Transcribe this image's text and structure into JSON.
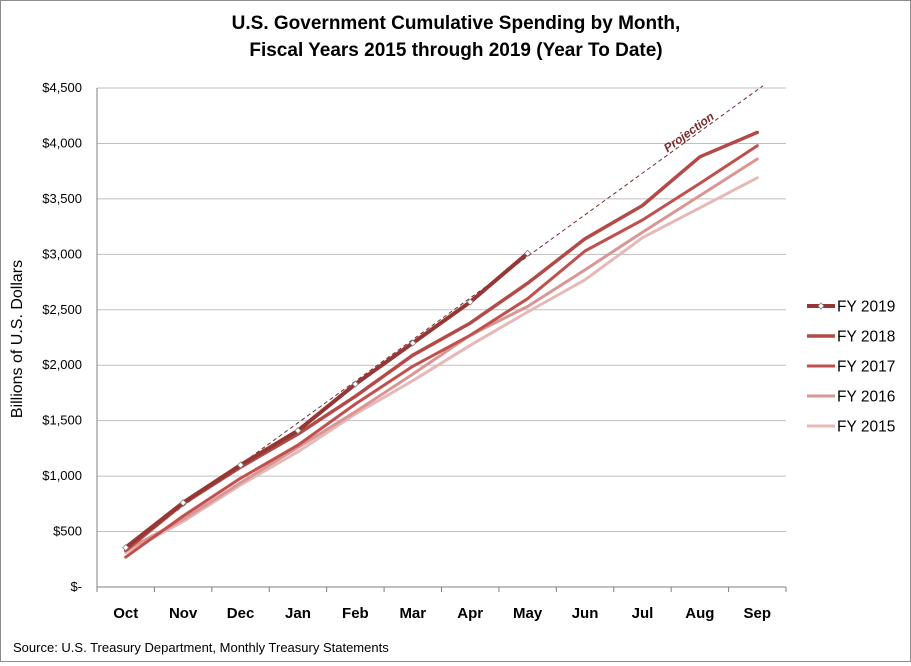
{
  "chart_data": {
    "type": "line",
    "title": [
      "U.S. Government Cumulative Spending by Month,",
      "Fiscal Years 2015 through 2019 (Year To Date)"
    ],
    "ylabel": "Billions of U.S. Dollars",
    "xlabel": "",
    "categories": [
      "Oct",
      "Nov",
      "Dec",
      "Jan",
      "Feb",
      "Mar",
      "Apr",
      "May",
      "Jun",
      "Jul",
      "Aug",
      "Sep"
    ],
    "ylim": [
      0,
      4500
    ],
    "y_ticks": [
      0,
      500,
      1000,
      1500,
      2000,
      2500,
      3000,
      3500,
      4000,
      4500
    ],
    "y_tick_labels": [
      "$-",
      "$500",
      "$1,000",
      "$1,500",
      "$2,000",
      "$2,500",
      "$3,000",
      "$3,500",
      "$4,000",
      "$4,500"
    ],
    "grid": "horizontal",
    "legend_position": "right",
    "series": [
      {
        "name": "FY 2019",
        "color": "#953735",
        "width": 4,
        "markers": true,
        "values": [
          355,
          760,
          1100,
          1410,
          1830,
          2200,
          2570,
          3010,
          null,
          null,
          null,
          null
        ]
      },
      {
        "name": "FY 2018",
        "color": "#b34a47",
        "width": 3.5,
        "markers": false,
        "values": [
          330,
          750,
          1080,
          1380,
          1720,
          2090,
          2380,
          2740,
          3140,
          3440,
          3880,
          4100
        ]
      },
      {
        "name": "FY 2017",
        "color": "#c0504d",
        "width": 3,
        "markers": false,
        "values": [
          270,
          640,
          980,
          1280,
          1650,
          1990,
          2270,
          2600,
          3030,
          3310,
          3640,
          3980
        ]
      },
      {
        "name": "FY 2016",
        "color": "#d99694",
        "width": 3,
        "markers": false,
        "values": [
          330,
          610,
          940,
          1260,
          1580,
          1920,
          2270,
          2530,
          2860,
          3200,
          3530,
          3860
        ]
      },
      {
        "name": "FY 2015",
        "color": "#e6b9b8",
        "width": 3,
        "markers": false,
        "values": [
          310,
          590,
          920,
          1220,
          1560,
          1860,
          2180,
          2480,
          2770,
          3150,
          3420,
          3690
        ]
      }
    ],
    "projection": {
      "label": "Projection",
      "color": "#7a2a2a",
      "start": 0,
      "start_value": 355,
      "end": 11.1,
      "end_value": 4520
    }
  },
  "source_note": "Source: U.S. Treasury Department, Monthly Treasury Statements"
}
